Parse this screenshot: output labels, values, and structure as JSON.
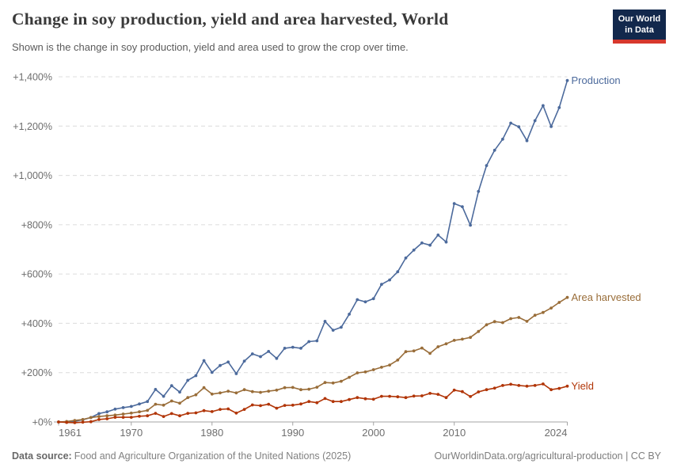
{
  "header": {
    "logo_line1": "Our World",
    "logo_line2": "in Data",
    "logo_bg_color": "#12284C",
    "logo_accent_color": "#D7382D"
  },
  "chart_data": {
    "type": "line",
    "title": "Change in soy production, yield and area harvested, World",
    "subtitle": "Shown is the change in soy production, yield and area used to grow the crop over time.",
    "xlabel": "",
    "ylabel": "",
    "grid": "horizontal-dashed",
    "legend_position": "end-of-line-labels",
    "ylim": [
      0,
      1400
    ],
    "yticks": [
      0,
      200,
      400,
      600,
      800,
      1000,
      1200,
      1400
    ],
    "ytick_labels": [
      "+0%",
      "+200%",
      "+400%",
      "+600%",
      "+800%",
      "+1,000%",
      "+1,200%",
      "+1,400%"
    ],
    "xticks": [
      1961,
      1970,
      1980,
      1990,
      2000,
      2010,
      2024
    ],
    "x": [
      1961,
      1962,
      1963,
      1964,
      1965,
      1966,
      1967,
      1968,
      1969,
      1970,
      1971,
      1972,
      1973,
      1974,
      1975,
      1976,
      1977,
      1978,
      1979,
      1980,
      1981,
      1982,
      1983,
      1984,
      1985,
      1986,
      1987,
      1988,
      1989,
      1990,
      1991,
      1992,
      1993,
      1994,
      1995,
      1996,
      1997,
      1998,
      1999,
      2000,
      2001,
      2002,
      2003,
      2004,
      2005,
      2006,
      2007,
      2008,
      2009,
      2010,
      2011,
      2012,
      2013,
      2014,
      2015,
      2016,
      2017,
      2018,
      2019,
      2020,
      2021,
      2022,
      2023,
      2024
    ],
    "series": [
      {
        "name": "Production",
        "color": "#4C6A9C",
        "unit": "%",
        "values": [
          0,
          -1,
          3,
          9,
          18,
          34,
          41,
          52,
          58,
          63,
          73,
          83,
          132,
          104,
          147,
          121,
          169,
          188,
          249,
          201,
          229,
          243,
          196,
          247,
          276,
          265,
          286,
          258,
          299,
          303,
          299,
          326,
          329,
          408,
          372,
          384,
          437,
          496,
          487,
          500,
          558,
          576,
          609,
          665,
          697,
          726,
          717,
          758,
          730,
          886,
          873,
          798,
          935,
          1040,
          1102,
          1147,
          1212,
          1197,
          1141,
          1222,
          1283,
          1198,
          1275,
          1385
        ]
      },
      {
        "name": "Area harvested",
        "color": "#996D39",
        "unit": "%",
        "values": [
          0,
          2,
          6,
          10,
          18,
          22,
          25,
          28,
          32,
          36,
          41,
          47,
          72,
          68,
          85,
          76,
          99,
          110,
          139,
          113,
          118,
          125,
          118,
          131,
          123,
          120,
          125,
          129,
          139,
          140,
          131,
          133,
          141,
          160,
          158,
          165,
          181,
          199,
          203,
          212,
          222,
          231,
          251,
          285,
          288,
          300,
          278,
          305,
          317,
          331,
          336,
          343,
          367,
          394,
          407,
          403,
          419,
          424,
          408,
          433,
          444,
          462,
          485,
          505
        ]
      },
      {
        "name": "Yield",
        "color": "#B13507",
        "unit": "%",
        "values": [
          0,
          -2,
          -3,
          -1,
          1,
          10,
          13,
          19,
          19,
          19,
          23,
          25,
          35,
          22,
          34,
          25,
          35,
          37,
          46,
          42,
          51,
          53,
          36,
          51,
          69,
          66,
          72,
          56,
          67,
          68,
          73,
          83,
          78,
          95,
          83,
          83,
          91,
          99,
          94,
          92,
          104,
          104,
          102,
          99,
          105,
          106,
          116,
          112,
          99,
          129,
          123,
          103,
          122,
          131,
          137,
          148,
          153,
          148,
          145,
          148,
          154,
          131,
          136,
          145
        ]
      }
    ]
  },
  "footer": {
    "source_label": "Data source:",
    "source_text": "Food and Agriculture Organization of the United Nations (2025)",
    "attribution": "OurWorldinData.org/agricultural-production | CC BY"
  },
  "colors": {
    "gridline": "#dcdcdc",
    "axis": "#a3a3a3",
    "tick_label": "#6e6e6e",
    "title_text": "#3a3a3a",
    "subtitle_text": "#5b5b5b",
    "footer_text": "#818181"
  }
}
